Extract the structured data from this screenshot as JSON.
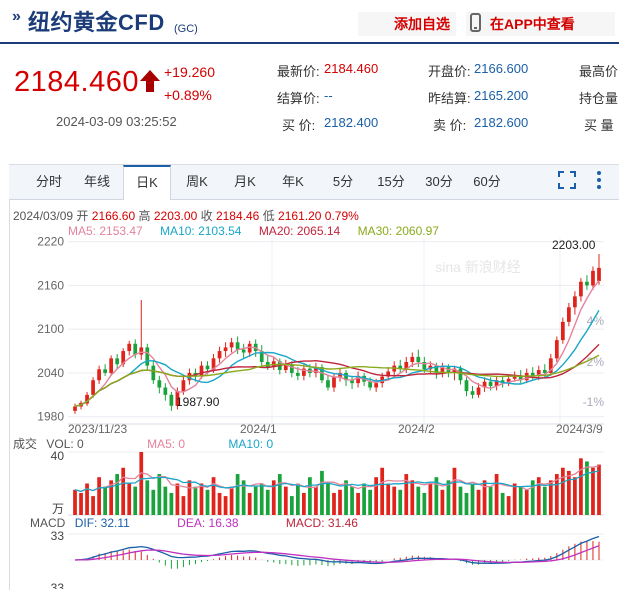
{
  "header": {
    "title": "纽约黄金CFD",
    "code": "(GC)",
    "add_label": "添加自选",
    "app_label": "在APP中查看"
  },
  "quote": {
    "price": "2184.460",
    "change": "+19.260",
    "change_pct": "+0.89%",
    "timestamp": "2024-03-09 03:25:52",
    "fields": [
      {
        "label": "最新价:",
        "value": "2184.460",
        "color": "red"
      },
      {
        "label": "开盘价:",
        "value": "2166.600",
        "color": "blue"
      },
      {
        "label": "最高价",
        "value": "",
        "color": "blue"
      },
      {
        "label": "结算价:",
        "value": "--",
        "color": "blue"
      },
      {
        "label": "昨结算:",
        "value": "2165.200",
        "color": "blue"
      },
      {
        "label": "持仓量",
        "value": "",
        "color": "blue"
      },
      {
        "label": "买   价:",
        "value": "2182.400",
        "color": "blue"
      },
      {
        "label": "卖   价:",
        "value": "2182.600",
        "color": "blue"
      },
      {
        "label": "买   量",
        "value": "",
        "color": "blue"
      }
    ]
  },
  "tabs": [
    "分时",
    "年线",
    "日K",
    "周K",
    "月K",
    "年K",
    "5分",
    "15分",
    "30分",
    "60分"
  ],
  "active_tab": "日K",
  "kline_info": {
    "date": "2024/03/09",
    "open_label": "开",
    "open": "2166.60",
    "high_label": "高",
    "high": "2203.00",
    "close_label": "收",
    "close": "2184.46",
    "low_label": "低",
    "low": "2161.20",
    "pct": "0.79%"
  },
  "ma_legend": [
    {
      "label": "MA5: 2153.47",
      "color": "#e3839c"
    },
    {
      "label": "MA10: 2103.54",
      "color": "#1aa6c8"
    },
    {
      "label": "MA20: 2065.14",
      "color": "#c0243c"
    },
    {
      "label": "MA30: 2060.97",
      "color": "#8aaa1c"
    }
  ],
  "watermark": "sina 新浪财经",
  "chart_data": {
    "type": "candlestick",
    "y_ticks": [
      "2220",
      "2160",
      "2100",
      "2040",
      "1980"
    ],
    "right_ticks": [
      "4%",
      "2%",
      "-1%"
    ],
    "x_ticks": [
      "2023/11/23",
      "2024/1",
      "2024/2",
      "2024/3/9"
    ],
    "max_label": "2203.00",
    "min_label": "1987.90",
    "ylim": [
      1970,
      2225
    ],
    "candles": [
      [
        1988,
        1994,
        1984,
        1998
      ],
      [
        1994,
        1999,
        1990,
        2002
      ],
      [
        1998,
        2010,
        1995,
        2014
      ],
      [
        2010,
        2030,
        2006,
        2034
      ],
      [
        2030,
        2045,
        2025,
        2050
      ],
      [
        2045,
        2040,
        2036,
        2052
      ],
      [
        2040,
        2060,
        2036,
        2064
      ],
      [
        2060,
        2052,
        2046,
        2066
      ],
      [
        2052,
        2070,
        2048,
        2074
      ],
      [
        2070,
        2080,
        2064,
        2084
      ],
      [
        2080,
        2065,
        2060,
        2086
      ],
      [
        2065,
        2075,
        2058,
        2140
      ],
      [
        2075,
        2050,
        2044,
        2080
      ],
      [
        2050,
        2030,
        2025,
        2056
      ],
      [
        2030,
        2020,
        2012,
        2036
      ],
      [
        2020,
        2010,
        2002,
        2026
      ],
      [
        2010,
        1995,
        1988,
        2014
      ],
      [
        1995,
        2015,
        1990,
        2020
      ],
      [
        2015,
        2030,
        2010,
        2036
      ],
      [
        2030,
        2040,
        2024,
        2046
      ],
      [
        2040,
        2035,
        2028,
        2046
      ],
      [
        2035,
        2050,
        2032,
        2056
      ],
      [
        2050,
        2045,
        2038,
        2056
      ],
      [
        2045,
        2060,
        2040,
        2066
      ],
      [
        2060,
        2070,
        2054,
        2076
      ],
      [
        2070,
        2075,
        2062,
        2082
      ],
      [
        2075,
        2082,
        2068,
        2088
      ],
      [
        2082,
        2072,
        2066,
        2090
      ],
      [
        2072,
        2068,
        2060,
        2080
      ],
      [
        2068,
        2080,
        2062,
        2084
      ],
      [
        2080,
        2070,
        2062,
        2086
      ],
      [
        2070,
        2055,
        2050,
        2078
      ],
      [
        2055,
        2048,
        2044,
        2064
      ],
      [
        2048,
        2056,
        2044,
        2062
      ],
      [
        2056,
        2044,
        2038,
        2060
      ],
      [
        2044,
        2052,
        2040,
        2058
      ],
      [
        2052,
        2040,
        2034,
        2056
      ],
      [
        2040,
        2036,
        2030,
        2048
      ],
      [
        2036,
        2046,
        2030,
        2052
      ],
      [
        2046,
        2040,
        2034,
        2052
      ],
      [
        2040,
        2048,
        2034,
        2054
      ],
      [
        2048,
        2030,
        2026,
        2052
      ],
      [
        2030,
        2020,
        2016,
        2038
      ],
      [
        2020,
        2034,
        2014,
        2040
      ],
      [
        2034,
        2040,
        2028,
        2046
      ],
      [
        2040,
        2030,
        2022,
        2044
      ],
      [
        2030,
        2026,
        2018,
        2036
      ],
      [
        2026,
        2036,
        2020,
        2042
      ],
      [
        2036,
        2028,
        2022,
        2040
      ],
      [
        2028,
        2020,
        2016,
        2034
      ],
      [
        2020,
        2026,
        2014,
        2032
      ],
      [
        2026,
        2035,
        2020,
        2040
      ],
      [
        2035,
        2042,
        2030,
        2048
      ],
      [
        2042,
        2050,
        2036,
        2056
      ],
      [
        2050,
        2046,
        2040,
        2058
      ],
      [
        2046,
        2055,
        2040,
        2062
      ],
      [
        2055,
        2062,
        2048,
        2068
      ],
      [
        2062,
        2055,
        2048,
        2072
      ],
      [
        2055,
        2045,
        2040,
        2062
      ],
      [
        2045,
        2050,
        2038,
        2056
      ],
      [
        2050,
        2040,
        2032,
        2054
      ],
      [
        2040,
        2048,
        2034,
        2054
      ],
      [
        2048,
        2040,
        2034,
        2052
      ],
      [
        2040,
        2046,
        2030,
        2050
      ],
      [
        2046,
        2030,
        2024,
        2050
      ],
      [
        2030,
        2015,
        2008,
        2034
      ],
      [
        2015,
        2010,
        2005,
        2022
      ],
      [
        2010,
        2020,
        2006,
        2026
      ],
      [
        2020,
        2028,
        2014,
        2034
      ],
      [
        2028,
        2022,
        2016,
        2034
      ],
      [
        2022,
        2030,
        2016,
        2036
      ],
      [
        2030,
        2026,
        2020,
        2036
      ],
      [
        2026,
        2032,
        2022,
        2038
      ],
      [
        2032,
        2036,
        2028,
        2042
      ],
      [
        2036,
        2030,
        2026,
        2044
      ],
      [
        2030,
        2040,
        2026,
        2046
      ],
      [
        2040,
        2036,
        2030,
        2048
      ],
      [
        2036,
        2044,
        2030,
        2050
      ],
      [
        2044,
        2040,
        2034,
        2052
      ],
      [
        2040,
        2060,
        2036,
        2066
      ],
      [
        2060,
        2085,
        2055,
        2090
      ],
      [
        2085,
        2110,
        2080,
        2116
      ],
      [
        2110,
        2130,
        2104,
        2136
      ],
      [
        2130,
        2145,
        2120,
        2152
      ],
      [
        2145,
        2165,
        2138,
        2170
      ],
      [
        2165,
        2160,
        2154,
        2174
      ],
      [
        2160,
        2180,
        2154,
        2186
      ],
      [
        2166,
        2184,
        2161,
        2203
      ]
    ],
    "volume": [
      16,
      14,
      20,
      12,
      24,
      18,
      22,
      26,
      30,
      20,
      18,
      40,
      22,
      16,
      26,
      18,
      14,
      20,
      12,
      22,
      18,
      20,
      16,
      24,
      14,
      12,
      18,
      26,
      22,
      14,
      18,
      20,
      16,
      22,
      26,
      18,
      12,
      20,
      14,
      24,
      18,
      28,
      20,
      14,
      16,
      22,
      18,
      14,
      20,
      16,
      24,
      30,
      20,
      18,
      16,
      26,
      22,
      18,
      14,
      20,
      24,
      16,
      22,
      30,
      18,
      14,
      20,
      16,
      22,
      18,
      26,
      14,
      12,
      20,
      18,
      16,
      22,
      24,
      18,
      22,
      26,
      30,
      28,
      24,
      36,
      34,
      30,
      32
    ],
    "vol_ticks": [
      "40",
      "万"
    ],
    "vol_legend": [
      {
        "label": "VOL: 0",
        "color": "#555"
      },
      {
        "label": "MA5: 0",
        "color": "#e3839c"
      },
      {
        "label": "MA10: 0",
        "color": "#1aa6c8"
      }
    ],
    "macd_legend": [
      {
        "label": "DIF: 32.11",
        "color": "#1b5fa8"
      },
      {
        "label": "DEA: 16.38",
        "color": "#c030c0"
      },
      {
        "label": "MACD: 31.46",
        "color": "#c0243c"
      }
    ],
    "macd_ticks": [
      "33",
      "33"
    ],
    "panel_labels": {
      "vol": "成交",
      "macd": "MACD"
    }
  }
}
